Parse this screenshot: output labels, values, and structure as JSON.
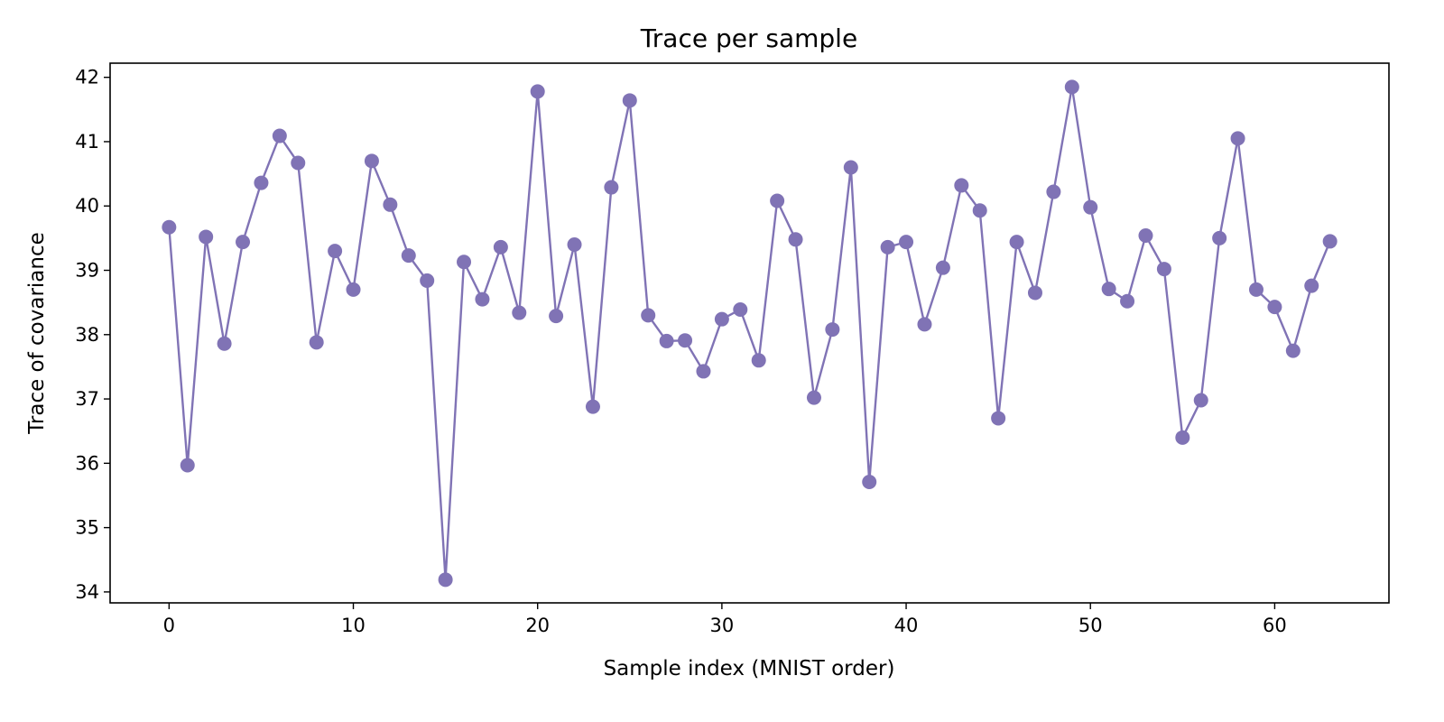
{
  "chart_data": {
    "type": "line",
    "title": "Trace per sample",
    "xlabel": "Sample index (MNIST order)",
    "ylabel": "Trace of covariance",
    "xlim": [
      -3.2,
      66.2
    ],
    "ylim": [
      33.83,
      42.22
    ],
    "xticks": [
      0,
      10,
      20,
      30,
      40,
      50,
      60
    ],
    "yticks": [
      34,
      35,
      36,
      37,
      38,
      39,
      40,
      41,
      42
    ],
    "grid": false,
    "color": "#8073b5",
    "marker": "circle",
    "series": [
      {
        "x": [
          0,
          1,
          2,
          3,
          4,
          5,
          6,
          7,
          8,
          9,
          10,
          11,
          12,
          13,
          14,
          15,
          16,
          17,
          18,
          19,
          20,
          21,
          22,
          23,
          24,
          25,
          26,
          27,
          28,
          29,
          30,
          31,
          32,
          33,
          34,
          35,
          36,
          37,
          38,
          39,
          40,
          41,
          42,
          43,
          44,
          45,
          46,
          47,
          48,
          49,
          50,
          51,
          52,
          53,
          54,
          55,
          56,
          57,
          58,
          59,
          60,
          61,
          62,
          63
        ],
        "values": [
          39.67,
          35.97,
          39.52,
          37.86,
          39.44,
          40.36,
          41.09,
          40.67,
          37.88,
          39.3,
          38.7,
          40.7,
          40.02,
          39.23,
          38.84,
          34.19,
          39.13,
          38.55,
          39.36,
          38.34,
          41.78,
          38.29,
          39.4,
          36.88,
          40.29,
          41.64,
          38.3,
          37.9,
          37.91,
          37.43,
          38.24,
          38.39,
          37.6,
          40.08,
          39.48,
          37.02,
          38.08,
          40.6,
          35.71,
          39.36,
          39.44,
          38.16,
          39.04,
          40.32,
          39.93,
          36.7,
          39.44,
          38.65,
          40.22,
          41.85,
          39.98,
          38.71,
          38.52,
          39.54,
          39.02,
          36.4,
          36.98,
          39.5,
          41.05,
          38.7,
          38.43,
          37.75,
          38.76,
          39.45
        ]
      }
    ]
  }
}
